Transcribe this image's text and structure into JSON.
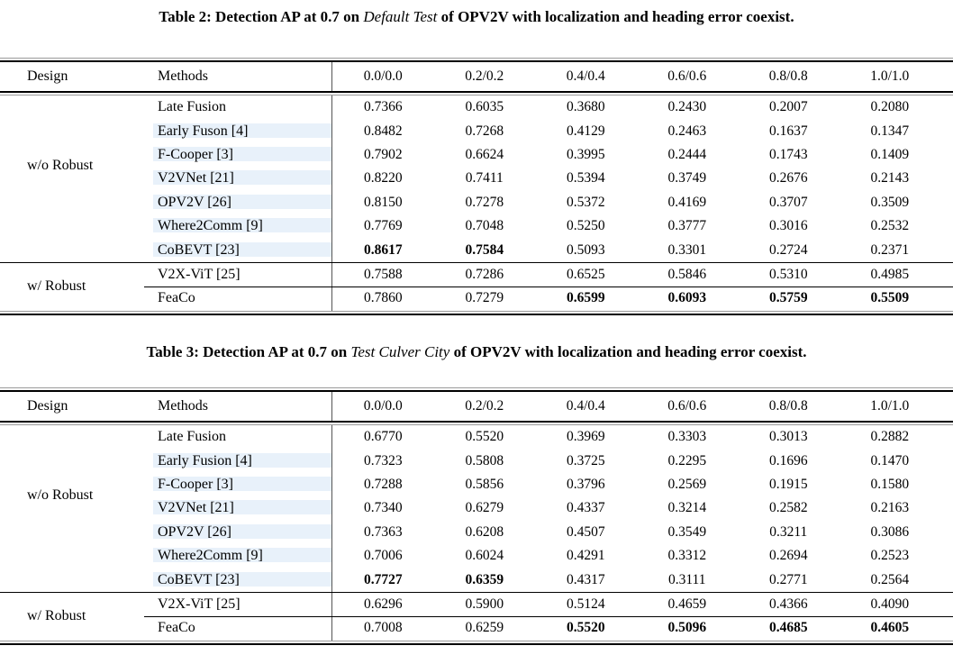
{
  "colors": {
    "background": "#ffffff",
    "text": "#000000",
    "rule": "#000000",
    "rule_shadow": "#9a9a9a",
    "divider": "#555555",
    "highlight": "#e8f1fa"
  },
  "document": {
    "tables": [
      {
        "caption": {
          "prefix": "Table 2: Detection AP at 0.7 on ",
          "italic": "Default Test",
          "suffix": " of OPV2V with localization and heading error coexist."
        },
        "header": {
          "design": "Design",
          "methods": "Methods",
          "noise_levels": [
            "0.0/0.0",
            "0.2/0.2",
            "0.4/0.4",
            "0.6/0.6",
            "0.8/0.8",
            "1.0/1.0"
          ]
        },
        "groups": [
          {
            "design": "w/o Robust",
            "rows": [
              {
                "method": "Late Fusion",
                "values": [
                  "0.7366",
                  "0.6035",
                  "0.3680",
                  "0.2430",
                  "0.2007",
                  "0.2080"
                ],
                "bold": [
                  0,
                  0,
                  0,
                  0,
                  0,
                  0
                ],
                "highlight": false
              },
              {
                "method": "Early Fuson [4]",
                "values": [
                  "0.8482",
                  "0.7268",
                  "0.4129",
                  "0.2463",
                  "0.1637",
                  "0.1347"
                ],
                "bold": [
                  0,
                  0,
                  0,
                  0,
                  0,
                  0
                ],
                "highlight": true
              },
              {
                "method": "F-Cooper [3]",
                "values": [
                  "0.7902",
                  "0.6624",
                  "0.3995",
                  "0.2444",
                  "0.1743",
                  "0.1409"
                ],
                "bold": [
                  0,
                  0,
                  0,
                  0,
                  0,
                  0
                ],
                "highlight": true
              },
              {
                "method": "V2VNet [21]",
                "values": [
                  "0.8220",
                  "0.7411",
                  "0.5394",
                  "0.3749",
                  "0.2676",
                  "0.2143"
                ],
                "bold": [
                  0,
                  0,
                  0,
                  0,
                  0,
                  0
                ],
                "highlight": true
              },
              {
                "method": "OPV2V [26]",
                "values": [
                  "0.8150",
                  "0.7278",
                  "0.5372",
                  "0.4169",
                  "0.3707",
                  "0.3509"
                ],
                "bold": [
                  0,
                  0,
                  0,
                  0,
                  0,
                  0
                ],
                "highlight": true
              },
              {
                "method": "Where2Comm [9]",
                "values": [
                  "0.7769",
                  "0.7048",
                  "0.5250",
                  "0.3777",
                  "0.3016",
                  "0.2532"
                ],
                "bold": [
                  0,
                  0,
                  0,
                  0,
                  0,
                  0
                ],
                "highlight": true
              },
              {
                "method": "CoBEVT [23]",
                "values": [
                  "0.8617",
                  "0.7584",
                  "0.5093",
                  "0.3301",
                  "0.2724",
                  "0.2371"
                ],
                "bold": [
                  1,
                  1,
                  0,
                  0,
                  0,
                  0
                ],
                "highlight": true
              }
            ]
          },
          {
            "design": "w/ Robust",
            "rows": [
              {
                "method": "V2X-ViT [25]",
                "values": [
                  "0.7588",
                  "0.7286",
                  "0.6525",
                  "0.5846",
                  "0.5310",
                  "0.4985"
                ],
                "bold": [
                  0,
                  0,
                  0,
                  0,
                  0,
                  0
                ],
                "highlight": false
              },
              {
                "method": "FeaCo",
                "values": [
                  "0.7860",
                  "0.7279",
                  "0.6599",
                  "0.6093",
                  "0.5759",
                  "0.5509"
                ],
                "bold": [
                  0,
                  0,
                  1,
                  1,
                  1,
                  1
                ],
                "highlight": false
              }
            ]
          }
        ]
      },
      {
        "caption": {
          "prefix": "Table 3: Detection AP at 0.7 on ",
          "italic": "Test Culver City",
          "suffix": " of OPV2V with localization and heading error coexist."
        },
        "header": {
          "design": "Design",
          "methods": "Methods",
          "noise_levels": [
            "0.0/0.0",
            "0.2/0.2",
            "0.4/0.4",
            "0.6/0.6",
            "0.8/0.8",
            "1.0/1.0"
          ]
        },
        "groups": [
          {
            "design": "w/o Robust",
            "rows": [
              {
                "method": "Late Fusion",
                "values": [
                  "0.6770",
                  "0.5520",
                  "0.3969",
                  "0.3303",
                  "0.3013",
                  "0.2882"
                ],
                "bold": [
                  0,
                  0,
                  0,
                  0,
                  0,
                  0
                ],
                "highlight": false
              },
              {
                "method": "Early Fusion [4]",
                "values": [
                  "0.7323",
                  "0.5808",
                  "0.3725",
                  "0.2295",
                  "0.1696",
                  "0.1470"
                ],
                "bold": [
                  0,
                  0,
                  0,
                  0,
                  0,
                  0
                ],
                "highlight": true
              },
              {
                "method": "F-Cooper [3]",
                "values": [
                  "0.7288",
                  "0.5856",
                  "0.3796",
                  "0.2569",
                  "0.1915",
                  "0.1580"
                ],
                "bold": [
                  0,
                  0,
                  0,
                  0,
                  0,
                  0
                ],
                "highlight": true
              },
              {
                "method": "V2VNet [21]",
                "values": [
                  "0.7340",
                  "0.6279",
                  "0.4337",
                  "0.3214",
                  "0.2582",
                  "0.2163"
                ],
                "bold": [
                  0,
                  0,
                  0,
                  0,
                  0,
                  0
                ],
                "highlight": true
              },
              {
                "method": "OPV2V [26]",
                "values": [
                  "0.7363",
                  "0.6208",
                  "0.4507",
                  "0.3549",
                  "0.3211",
                  "0.3086"
                ],
                "bold": [
                  0,
                  0,
                  0,
                  0,
                  0,
                  0
                ],
                "highlight": true
              },
              {
                "method": "Where2Comm [9]",
                "values": [
                  "0.7006",
                  "0.6024",
                  "0.4291",
                  "0.3312",
                  "0.2694",
                  "0.2523"
                ],
                "bold": [
                  0,
                  0,
                  0,
                  0,
                  0,
                  0
                ],
                "highlight": true
              },
              {
                "method": "CoBEVT [23]",
                "values": [
                  "0.7727",
                  "0.6359",
                  "0.4317",
                  "0.3111",
                  "0.2771",
                  "0.2564"
                ],
                "bold": [
                  1,
                  1,
                  0,
                  0,
                  0,
                  0
                ],
                "highlight": true
              }
            ]
          },
          {
            "design": "w/ Robust",
            "rows": [
              {
                "method": "V2X-ViT [25]",
                "values": [
                  "0.6296",
                  "0.5900",
                  "0.5124",
                  "0.4659",
                  "0.4366",
                  "0.4090"
                ],
                "bold": [
                  0,
                  0,
                  0,
                  0,
                  0,
                  0
                ],
                "highlight": false
              },
              {
                "method": "FeaCo",
                "values": [
                  "0.7008",
                  "0.6259",
                  "0.5520",
                  "0.5096",
                  "0.4685",
                  "0.4605"
                ],
                "bold": [
                  0,
                  0,
                  1,
                  1,
                  1,
                  1
                ],
                "highlight": false
              }
            ]
          }
        ]
      }
    ]
  }
}
